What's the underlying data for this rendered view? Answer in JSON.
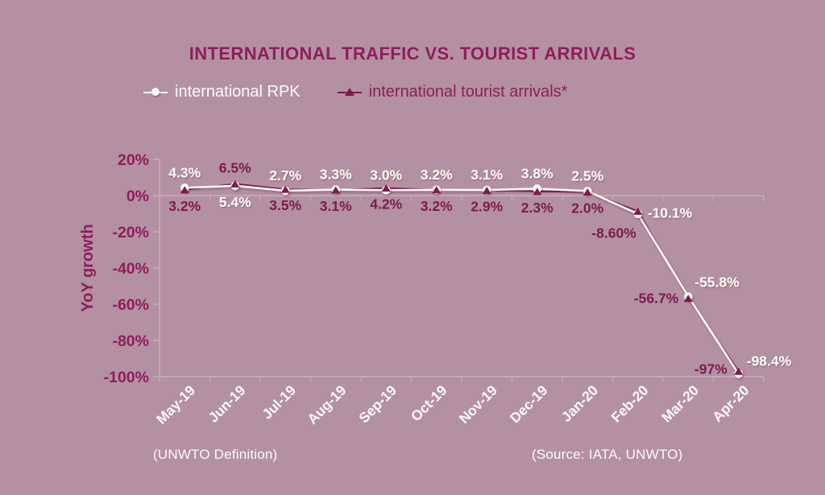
{
  "title": "INTERNATIONAL TRAFFIC VS. TOURIST ARRIVALS",
  "legend": {
    "items": [
      {
        "label": "international RPK",
        "marker": "circle",
        "color": "#fbf8f4"
      },
      {
        "label": "international tourist arrivals*",
        "marker": "triangle",
        "color": "#7d1a52"
      }
    ]
  },
  "footnotes": {
    "left": "(UNWTO Definition)",
    "right": "(Source: IATA, UNWTO)"
  },
  "colors": {
    "background": "#b491a2",
    "dark_magenta_text": "#8e1d5c",
    "arrivals_series": "#7d1a52",
    "rpk_series": "#fbf8f4",
    "white_labels": "#fdfaf6",
    "axis_lines": "#c9aec0"
  },
  "chart_data": {
    "type": "line",
    "title": "INTERNATIONAL TRAFFIC VS. TOURIST ARRIVALS",
    "xlabel": "",
    "ylabel": "YoY growth",
    "ylim": [
      -100,
      20
    ],
    "ytick_step": 20,
    "ytick_labels": [
      "20%",
      "0%",
      "-20%",
      "-40%",
      "-60%",
      "-80%",
      "-100%"
    ],
    "grid": false,
    "legend_position": "top",
    "xtick_rotation": 45,
    "categories": [
      "May-19",
      "Jun-19",
      "Jul-19",
      "Aug-19",
      "Sep-19",
      "Oct-19",
      "Nov-19",
      "Dec-19",
      "Jan-20",
      "Feb-20",
      "Mar-20",
      "Apr-20"
    ],
    "series": [
      {
        "name": "international RPK",
        "marker": "circle",
        "color": "#fbf8f4",
        "label_color": "#fdfaf6",
        "values": [
          4.3,
          5.4,
          2.7,
          3.3,
          3.0,
          3.2,
          3.1,
          3.8,
          2.5,
          -10.1,
          -55.8,
          -98.4
        ],
        "labels": [
          "4.3%",
          "5.4%",
          "2.7%",
          "3.3%",
          "3.0%",
          "3.2%",
          "3.1%",
          "3.8%",
          "2.5%",
          "-10.1%",
          "-55.8%",
          "-98.4%"
        ],
        "label_placement": [
          {
            "anchor": "middle",
            "dx": 0,
            "dy": -13
          },
          {
            "anchor": "middle",
            "dx": 0,
            "dy": 26
          },
          {
            "anchor": "middle",
            "dx": 0,
            "dy": -13
          },
          {
            "anchor": "middle",
            "dx": 0,
            "dy": -13
          },
          {
            "anchor": "middle",
            "dx": 0,
            "dy": -13
          },
          {
            "anchor": "middle",
            "dx": 0,
            "dy": -13
          },
          {
            "anchor": "middle",
            "dx": 0,
            "dy": -13
          },
          {
            "anchor": "middle",
            "dx": 0,
            "dy": -13
          },
          {
            "anchor": "middle",
            "dx": 0,
            "dy": -13
          },
          {
            "anchor": "start",
            "dx": 12,
            "dy": 5
          },
          {
            "anchor": "start",
            "dx": 8,
            "dy": -12
          },
          {
            "anchor": "start",
            "dx": 10,
            "dy": -10
          }
        ]
      },
      {
        "name": "international tourist arrivals*",
        "marker": "triangle",
        "color": "#7d1a52",
        "label_color": "#7d1a52",
        "values": [
          3.2,
          6.5,
          3.5,
          3.1,
          4.2,
          3.2,
          2.9,
          2.3,
          2.0,
          -8.6,
          -56.7,
          -97
        ],
        "labels": [
          "3.2%",
          "6.5%",
          "3.5%",
          "3.1%",
          "4.2%",
          "3.2%",
          "2.9%",
          "2.3%",
          "2.0%",
          "-8.60%",
          "-56.7%",
          "-97%"
        ],
        "label_placement": [
          {
            "anchor": "middle",
            "dx": 0,
            "dy": 26
          },
          {
            "anchor": "middle",
            "dx": 0,
            "dy": -14
          },
          {
            "anchor": "middle",
            "dx": 0,
            "dy": 26
          },
          {
            "anchor": "middle",
            "dx": 0,
            "dy": 26
          },
          {
            "anchor": "middle",
            "dx": 0,
            "dy": 26
          },
          {
            "anchor": "middle",
            "dx": 0,
            "dy": 26
          },
          {
            "anchor": "middle",
            "dx": 0,
            "dy": 26
          },
          {
            "anchor": "middle",
            "dx": 0,
            "dy": 26
          },
          {
            "anchor": "middle",
            "dx": 0,
            "dy": 26
          },
          {
            "anchor": "end",
            "dx": -2,
            "dy": 33
          },
          {
            "anchor": "end",
            "dx": -12,
            "dy": 6
          },
          {
            "anchor": "end",
            "dx": -14,
            "dy": 3
          }
        ]
      }
    ]
  }
}
